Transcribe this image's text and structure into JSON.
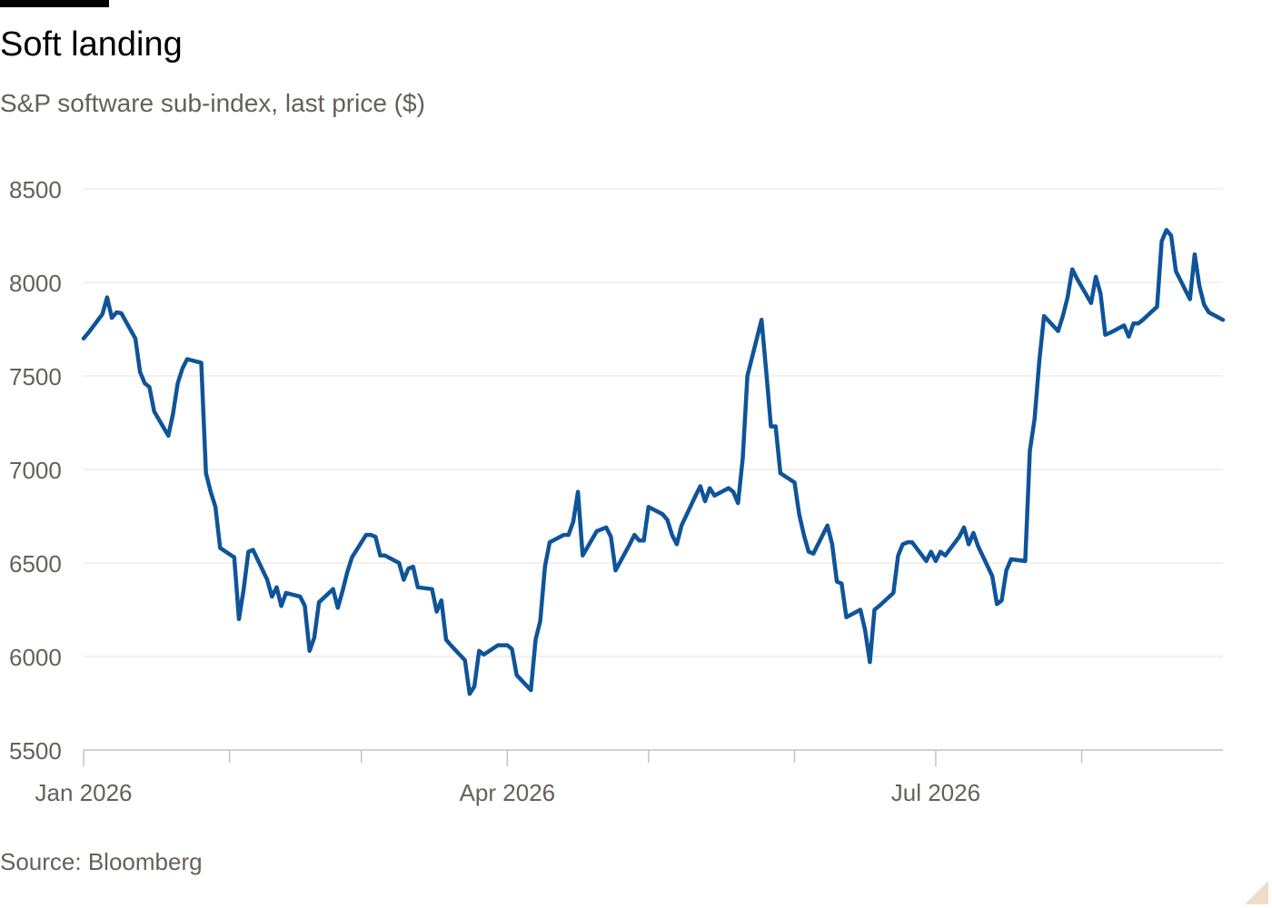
{
  "header": {
    "title": "Soft landing",
    "subtitle": "S&P software sub-index, last price ($)"
  },
  "footer": {
    "source": "Source: Bloomberg"
  },
  "colors": {
    "line": "#0f5499",
    "grid": "#f0ebe6",
    "axis": "#c7c2bd",
    "tick_label": "#66605c"
  },
  "chart_data": {
    "type": "line",
    "title": "Soft landing",
    "subtitle": "S&P software sub-index, last price ($)",
    "xlabel": "",
    "ylabel": "",
    "ylim": [
      5500,
      8500
    ],
    "xlim": [
      "2026-01-01",
      "2026-08-31"
    ],
    "y_ticks": [
      5500,
      6000,
      6500,
      7000,
      7500,
      8000,
      8500
    ],
    "x_tick_labels": [
      {
        "date": "2026-01-01",
        "label": "Jan 2026"
      },
      {
        "date": "2026-04-01",
        "label": "Apr 2026"
      },
      {
        "date": "2026-07-01",
        "label": "Jul 2026"
      }
    ],
    "x_minor_ticks": [
      "2026-02-01",
      "2026-03-01",
      "2026-05-01",
      "2026-06-01",
      "2026-08-01",
      "2026-09-01"
    ],
    "grid": true,
    "series": [
      {
        "x": [
          "2026-01-01",
          "2026-01-02",
          "2026-01-05",
          "2026-01-06",
          "2026-01-07",
          "2026-01-08",
          "2026-01-09",
          "2026-01-12",
          "2026-01-13",
          "2026-01-14",
          "2026-01-15",
          "2026-01-16",
          "2026-01-19",
          "2026-01-20",
          "2026-01-21",
          "2026-01-22",
          "2026-01-23",
          "2026-01-26",
          "2026-01-27",
          "2026-01-28",
          "2026-01-29",
          "2026-01-30",
          "2026-02-02",
          "2026-02-03",
          "2026-02-04",
          "2026-02-05",
          "2026-02-06",
          "2026-02-09",
          "2026-02-10",
          "2026-02-11",
          "2026-02-12",
          "2026-02-13",
          "2026-02-16",
          "2026-02-17",
          "2026-02-18",
          "2026-02-19",
          "2026-02-20",
          "2026-02-23",
          "2026-02-24",
          "2026-02-25",
          "2026-02-26",
          "2026-02-27",
          "2026-03-02",
          "2026-03-03",
          "2026-03-04",
          "2026-03-05",
          "2026-03-06",
          "2026-03-09",
          "2026-03-10",
          "2026-03-11",
          "2026-03-12",
          "2026-03-13",
          "2026-03-16",
          "2026-03-17",
          "2026-03-18",
          "2026-03-19",
          "2026-03-20",
          "2026-03-23",
          "2026-03-24",
          "2026-03-25",
          "2026-03-26",
          "2026-03-27",
          "2026-03-30",
          "2026-03-31",
          "2026-04-01",
          "2026-04-02",
          "2026-04-03",
          "2026-04-06",
          "2026-04-07",
          "2026-04-08",
          "2026-04-09",
          "2026-04-10",
          "2026-04-13",
          "2026-04-14",
          "2026-04-15",
          "2026-04-16",
          "2026-04-17",
          "2026-04-20",
          "2026-04-21",
          "2026-04-22",
          "2026-04-23",
          "2026-04-24",
          "2026-04-27",
          "2026-04-28",
          "2026-04-29",
          "2026-04-30",
          "2026-05-01",
          "2026-05-04",
          "2026-05-05",
          "2026-05-06",
          "2026-05-07",
          "2026-05-08",
          "2026-05-11",
          "2026-05-12",
          "2026-05-13",
          "2026-05-14",
          "2026-05-15",
          "2026-05-18",
          "2026-05-19",
          "2026-05-20",
          "2026-05-21",
          "2026-05-22",
          "2026-05-25",
          "2026-05-26",
          "2026-05-27",
          "2026-05-28",
          "2026-05-29",
          "2026-06-01",
          "2026-06-02",
          "2026-06-03",
          "2026-06-04",
          "2026-06-05",
          "2026-06-08",
          "2026-06-09",
          "2026-06-10",
          "2026-06-11",
          "2026-06-12",
          "2026-06-15",
          "2026-06-16",
          "2026-06-17",
          "2026-06-18",
          "2026-06-19",
          "2026-06-22",
          "2026-06-23",
          "2026-06-24",
          "2026-06-25",
          "2026-06-26",
          "2026-06-29",
          "2026-06-30",
          "2026-07-01",
          "2026-07-02",
          "2026-07-03",
          "2026-07-06",
          "2026-07-07",
          "2026-07-08",
          "2026-07-09",
          "2026-07-10",
          "2026-07-13",
          "2026-07-14",
          "2026-07-15",
          "2026-07-16",
          "2026-07-17",
          "2026-07-20",
          "2026-07-21",
          "2026-07-22",
          "2026-07-23",
          "2026-07-24",
          "2026-07-27",
          "2026-07-28",
          "2026-07-29",
          "2026-07-30",
          "2026-07-31",
          "2026-08-03",
          "2026-08-04",
          "2026-08-05",
          "2026-08-06",
          "2026-08-07",
          "2026-08-10",
          "2026-08-11",
          "2026-08-12",
          "2026-08-13",
          "2026-08-14",
          "2026-08-17",
          "2026-08-18",
          "2026-08-19",
          "2026-08-20",
          "2026-08-21",
          "2026-08-24",
          "2026-08-25",
          "2026-08-26",
          "2026-08-27",
          "2026-08-28",
          "2026-08-31"
        ],
        "values": [
          7700,
          7730,
          7830,
          7920,
          7810,
          7840,
          7835,
          7700,
          7520,
          7460,
          7440,
          7310,
          7180,
          7300,
          7460,
          7540,
          7590,
          7570,
          6980,
          6880,
          6800,
          6580,
          6530,
          6200,
          6360,
          6560,
          6570,
          6410,
          6320,
          6370,
          6270,
          6340,
          6320,
          6270,
          6030,
          6100,
          6290,
          6360,
          6260,
          6350,
          6450,
          6530,
          6650,
          6650,
          6640,
          6540,
          6540,
          6500,
          6410,
          6470,
          6480,
          6370,
          6360,
          6240,
          6300,
          6090,
          6060,
          5980,
          5800,
          5840,
          6030,
          6010,
          6060,
          6060,
          6060,
          6040,
          5900,
          5820,
          6090,
          6190,
          6480,
          6610,
          6650,
          6650,
          6720,
          6880,
          6540,
          6670,
          6680,
          6690,
          6640,
          6460,
          6600,
          6650,
          6620,
          6620,
          6800,
          6760,
          6730,
          6650,
          6600,
          6700,
          6860,
          6910,
          6830,
          6900,
          6860,
          6900,
          6880,
          6820,
          7060,
          7500,
          7800,
          7520,
          7230,
          7230,
          6980,
          6930,
          6760,
          6650,
          6560,
          6550,
          6700,
          6600,
          6400,
          6390,
          6210,
          6250,
          6140,
          5970,
          6250,
          6270,
          6340,
          6540,
          6600,
          6610,
          6610,
          6510,
          6560,
          6510,
          6560,
          6540,
          6640,
          6690,
          6600,
          6660,
          6590,
          6430,
          6280,
          6300,
          6460,
          6520,
          6510,
          7100,
          7270,
          7580,
          7820,
          7740,
          7820,
          7920,
          8070,
          8020,
          7890,
          8030,
          7940,
          7720,
          7730,
          7770,
          7710,
          7780,
          7780,
          7800,
          7870,
          8220,
          8280,
          8250,
          8060,
          7910,
          8150,
          7980,
          7880,
          7840,
          7800
        ]
      }
    ]
  }
}
